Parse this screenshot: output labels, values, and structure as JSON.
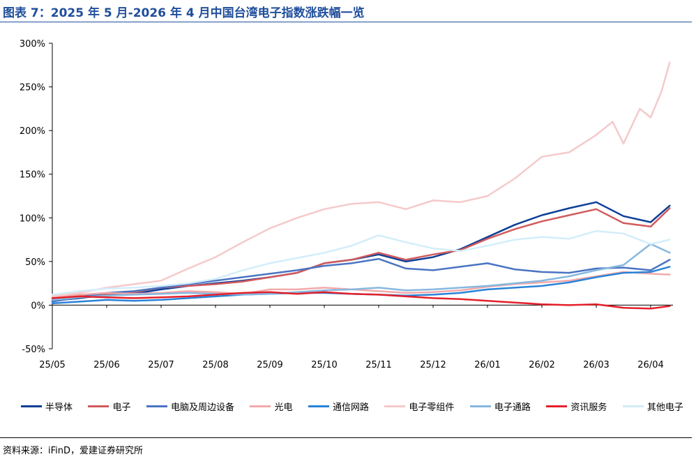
{
  "title": "图表 7：2025 年 5 月-2026 年 4 月中国台湾电子指数涨跌幅一览",
  "source": "资料来源：iFinD，爱建证券研究所",
  "chart_data": {
    "type": "line",
    "title": "图表 7：2025 年 5 月-2026 年 4 月中国台湾电子指数涨跌幅一览",
    "xlabel": "",
    "ylabel": "",
    "x_ticks": [
      "25/05",
      "25/06",
      "25/07",
      "25/08",
      "25/09",
      "25/10",
      "25/11",
      "25/12",
      "26/01",
      "26/02",
      "26/03",
      "26/04"
    ],
    "y_ticks": [
      "300%",
      "250%",
      "200%",
      "150%",
      "100%",
      "50%",
      "0%",
      "-50%"
    ],
    "ylim": [
      -50,
      300
    ],
    "xlim": [
      0,
      11.35
    ],
    "grid": false,
    "legend": "bottom",
    "series": [
      {
        "name": "半导体",
        "color": "#0e3f96",
        "x": [
          0,
          0.5,
          1,
          1.5,
          2,
          2.5,
          3,
          3.5,
          4,
          4.5,
          5,
          5.5,
          6,
          6.5,
          7,
          7.5,
          8,
          8.5,
          9,
          9.5,
          10,
          10.5,
          11,
          11.35
        ],
        "y": [
          5,
          8,
          12,
          13,
          18,
          22,
          25,
          28,
          32,
          37,
          48,
          52,
          58,
          50,
          55,
          64,
          78,
          92,
          103,
          111,
          118,
          102,
          95,
          114
        ]
      },
      {
        "name": "电子",
        "color": "#d15a5c",
        "x": [
          0,
          0.5,
          1,
          1.5,
          2,
          2.5,
          3,
          3.5,
          4,
          4.5,
          5,
          5.5,
          6,
          6.5,
          7,
          7.5,
          8,
          8.5,
          9,
          9.5,
          10,
          10.5,
          11,
          11.35
        ],
        "y": [
          7,
          10,
          13,
          15,
          20,
          22,
          24,
          27,
          32,
          37,
          48,
          52,
          60,
          52,
          58,
          63,
          76,
          87,
          96,
          103,
          110,
          94,
          90,
          111
        ]
      },
      {
        "name": "电脑及周边设备",
        "color": "#4a74c3",
        "x": [
          0,
          0.5,
          1,
          1.5,
          2,
          2.5,
          3,
          3.5,
          4,
          4.5,
          5,
          5.5,
          6,
          6.5,
          7,
          7.5,
          8,
          8.5,
          9,
          9.5,
          10,
          10.5,
          11,
          11.35
        ],
        "y": [
          4,
          9,
          14,
          16,
          20,
          24,
          28,
          32,
          36,
          40,
          45,
          48,
          53,
          42,
          40,
          44,
          48,
          41,
          38,
          37,
          42,
          43,
          40,
          52
        ]
      },
      {
        "name": "光电",
        "color": "#f2a9a9",
        "x": [
          0,
          0.5,
          1,
          1.5,
          2,
          2.5,
          3,
          3.5,
          4,
          4.5,
          5,
          5.5,
          6,
          6.5,
          7,
          7.5,
          8,
          8.5,
          9,
          9.5,
          10,
          10.5,
          11,
          11.35
        ],
        "y": [
          10,
          12,
          14,
          13,
          14,
          16,
          15,
          13,
          18,
          18,
          20,
          18,
          16,
          14,
          15,
          17,
          21,
          24,
          26,
          28,
          33,
          38,
          36,
          35
        ]
      },
      {
        "name": "通信网路",
        "color": "#2a83d8",
        "x": [
          0,
          0.5,
          1,
          1.5,
          2,
          2.5,
          3,
          3.5,
          4,
          4.5,
          5,
          5.5,
          6,
          6.5,
          7,
          7.5,
          8,
          8.5,
          9,
          9.5,
          10,
          10.5,
          11,
          11.35
        ],
        "y": [
          2,
          4,
          6,
          5,
          6,
          8,
          10,
          12,
          13,
          14,
          14,
          13,
          12,
          11,
          12,
          14,
          18,
          20,
          22,
          26,
          32,
          37,
          38,
          44
        ]
      },
      {
        "name": "电子零组件",
        "color": "#f5c9cb",
        "x": [
          0,
          0.5,
          1,
          1.5,
          2,
          2.5,
          3,
          3.5,
          4,
          4.5,
          5,
          5.5,
          6,
          6.5,
          7,
          7.5,
          8,
          8.5,
          9,
          9.5,
          10,
          10.3,
          10.5,
          10.8,
          11,
          11.2,
          11.35
        ],
        "y": [
          10,
          14,
          20,
          24,
          28,
          42,
          55,
          72,
          88,
          100,
          110,
          116,
          118,
          110,
          120,
          118,
          125,
          145,
          170,
          175,
          195,
          210,
          185,
          225,
          215,
          245,
          278
        ]
      },
      {
        "name": "电子通路",
        "color": "#86b8e0",
        "x": [
          0,
          0.5,
          1,
          1.5,
          2,
          2.5,
          3,
          3.5,
          4,
          4.5,
          5,
          5.5,
          6,
          6.5,
          7,
          7.5,
          8,
          8.5,
          9,
          9.5,
          10,
          10.5,
          11,
          11.35
        ],
        "y": [
          6,
          9,
          11,
          12,
          13,
          14,
          13,
          12,
          13,
          15,
          17,
          18,
          20,
          17,
          18,
          20,
          22,
          25,
          28,
          33,
          40,
          46,
          70,
          60
        ]
      },
      {
        "name": "资讯服务",
        "color": "#e4202a",
        "x": [
          0,
          0.5,
          1,
          1.5,
          2,
          2.5,
          3,
          3.5,
          4,
          4.5,
          5,
          5.5,
          6,
          6.5,
          7,
          7.5,
          8,
          8.5,
          9,
          9.5,
          10,
          10.5,
          11,
          11.35
        ],
        "y": [
          8,
          10,
          9,
          8,
          9,
          10,
          12,
          14,
          15,
          13,
          15,
          13,
          12,
          10,
          8,
          7,
          5,
          3,
          1,
          0,
          1,
          -3,
          -4,
          -1
        ]
      },
      {
        "name": "其他电子",
        "color": "#d3edfa",
        "x": [
          0,
          0.5,
          1,
          1.5,
          2,
          2.5,
          3,
          3.5,
          4,
          4.5,
          5,
          5.5,
          6,
          6.5,
          7,
          7.5,
          8,
          8.5,
          9,
          9.5,
          10,
          10.5,
          11,
          11.35
        ],
        "y": [
          12,
          16,
          19,
          20,
          22,
          25,
          30,
          40,
          48,
          54,
          60,
          68,
          80,
          72,
          65,
          62,
          68,
          75,
          78,
          76,
          85,
          82,
          70,
          75
        ]
      }
    ]
  }
}
